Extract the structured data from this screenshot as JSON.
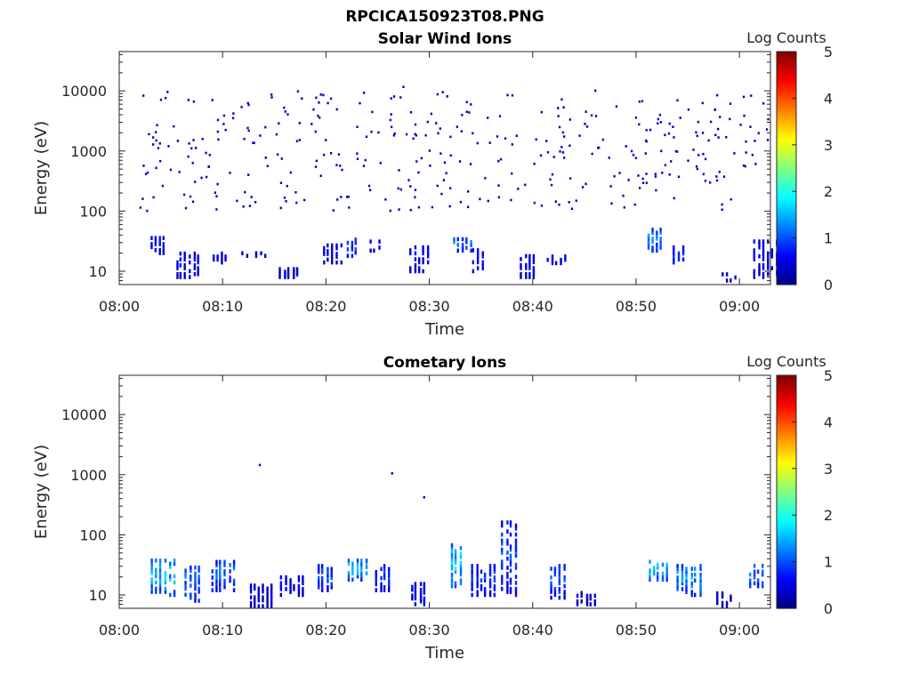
{
  "figure_title": "RPCICA150923T08.PNG",
  "chart_data": [
    {
      "type": "heatmap",
      "title": "Solar Wind Ions",
      "xlabel": "Time",
      "ylabel": "Energy (eV)",
      "yscale": "log",
      "xlim": [
        "08:00",
        "09:03"
      ],
      "ylim": [
        6,
        45000
      ],
      "xticks": [
        "08:00",
        "08:10",
        "08:20",
        "08:30",
        "08:40",
        "08:50",
        "09:00"
      ],
      "yticks": [
        "10",
        "100",
        "1000",
        "10000"
      ],
      "colorbar": {
        "label": "Log Counts",
        "min": 0,
        "max": 5,
        "ticks": [
          "0",
          "1",
          "2",
          "3",
          "4",
          "5"
        ],
        "colormap": "jet"
      },
      "grid": false,
      "clusters": [
        {
          "t": 3.9,
          "e_lo": 20,
          "e_hi": 40,
          "level": 0.8
        },
        {
          "t": 6.4,
          "e_lo": 8,
          "e_hi": 22,
          "level": 0.6
        },
        {
          "t": 9.9,
          "e_lo": 14,
          "e_hi": 22,
          "level": 0.6
        },
        {
          "t": 12.8,
          "e_lo": 18,
          "e_hi": 22,
          "level": 0.5
        },
        {
          "t": 16.4,
          "e_lo": 8,
          "e_hi": 12,
          "level": 0.5
        },
        {
          "t": 20.6,
          "e_lo": 14,
          "e_hi": 30,
          "level": 0.6
        },
        {
          "t": 22.9,
          "e_lo": 18,
          "e_hi": 38,
          "level": 1.0
        },
        {
          "t": 25.1,
          "e_lo": 22,
          "e_hi": 35,
          "level": 0.6
        },
        {
          "t": 29.0,
          "e_lo": 10,
          "e_hi": 28,
          "level": 0.6
        },
        {
          "t": 33.2,
          "e_lo": 22,
          "e_hi": 38,
          "level": 1.2
        },
        {
          "t": 35.1,
          "e_lo": 10,
          "e_hi": 25,
          "level": 0.7
        },
        {
          "t": 39.7,
          "e_lo": 8,
          "e_hi": 20,
          "level": 0.6
        },
        {
          "t": 42.3,
          "e_lo": 12,
          "e_hi": 20,
          "level": 0.6
        },
        {
          "t": 52.0,
          "e_lo": 22,
          "e_hi": 55,
          "level": 1.3
        },
        {
          "t": 54.5,
          "e_lo": 14,
          "e_hi": 28,
          "level": 0.9
        },
        {
          "t": 59.2,
          "e_lo": 7,
          "e_hi": 10,
          "level": 0.5
        },
        {
          "t": 62.3,
          "e_lo": 8,
          "e_hi": 35,
          "level": 0.6
        }
      ],
      "background_counts": {
        "t_range": [
          2.0,
          62.9
        ],
        "e_range": [
          100,
          10000
        ],
        "level": 0.3
      }
    },
    {
      "type": "heatmap",
      "title": "Cometary Ions",
      "xlabel": "Time",
      "ylabel": "Energy (eV)",
      "yscale": "log",
      "xlim": [
        "08:00",
        "09:03"
      ],
      "ylim": [
        6,
        45000
      ],
      "xticks": [
        "08:00",
        "08:10",
        "08:20",
        "08:30",
        "08:40",
        "08:50",
        "09:00"
      ],
      "yticks": [
        "10",
        "100",
        "1000",
        "10000"
      ],
      "colorbar": {
        "label": "Log Counts",
        "min": 0,
        "max": 5,
        "ticks": [
          "0",
          "1",
          "2",
          "3",
          "4",
          "5"
        ],
        "colormap": "jet"
      },
      "grid": false,
      "clusters": [
        {
          "t": 4.0,
          "e_lo": 10,
          "e_hi": 42,
          "level": 1.6
        },
        {
          "t": 7.3,
          "e_lo": 8,
          "e_hi": 32,
          "level": 1.2
        },
        {
          "t": 9.8,
          "e_lo": 12,
          "e_hi": 40,
          "level": 1.2
        },
        {
          "t": 13.5,
          "e_lo": 6.5,
          "e_hi": 16,
          "level": 0.5
        },
        {
          "t": 16.5,
          "e_lo": 10,
          "e_hi": 22,
          "level": 0.6
        },
        {
          "t": 20.1,
          "e_lo": 12,
          "e_hi": 34,
          "level": 1.0
        },
        {
          "t": 23.0,
          "e_lo": 18,
          "e_hi": 42,
          "level": 1.6
        },
        {
          "t": 25.7,
          "e_lo": 12,
          "e_hi": 34,
          "level": 0.9
        },
        {
          "t": 29.1,
          "e_lo": 7,
          "e_hi": 17,
          "level": 0.6
        },
        {
          "t": 33.0,
          "e_lo": 14,
          "e_hi": 75,
          "level": 1.8
        },
        {
          "t": 35.0,
          "e_lo": 10,
          "e_hi": 34,
          "level": 0.9
        },
        {
          "t": 37.9,
          "e_lo": 10,
          "e_hi": 180,
          "level": 1.0
        },
        {
          "t": 42.6,
          "e_lo": 9,
          "e_hi": 34,
          "level": 1.1
        },
        {
          "t": 45.2,
          "e_lo": 7,
          "e_hi": 12,
          "level": 0.5
        },
        {
          "t": 52.1,
          "e_lo": 18,
          "e_hi": 40,
          "level": 1.7
        },
        {
          "t": 54.9,
          "e_lo": 10,
          "e_hi": 34,
          "level": 1.4
        },
        {
          "t": 58.7,
          "e_lo": 6.5,
          "e_hi": 12,
          "level": 0.5
        },
        {
          "t": 61.8,
          "e_lo": 14,
          "e_hi": 34,
          "level": 1.3
        }
      ],
      "isolated_points": [
        {
          "t": 13.6,
          "e": 1450,
          "level": 0.3
        },
        {
          "t": 26.4,
          "e": 1050,
          "level": 0.3
        },
        {
          "t": 29.5,
          "e": 420,
          "level": 0.3
        }
      ]
    }
  ]
}
